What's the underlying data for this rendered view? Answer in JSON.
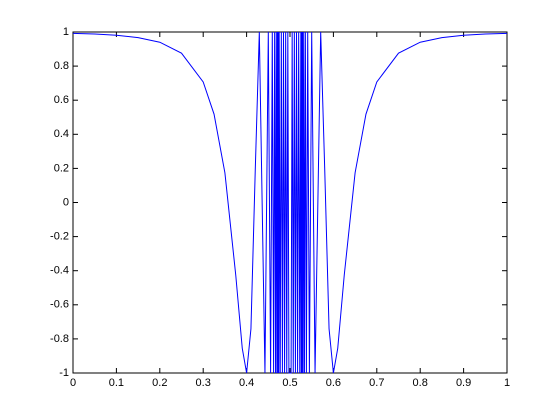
{
  "chart_data": {
    "type": "line",
    "x": [
      0,
      0.05,
      0.1,
      0.15,
      0.2,
      0.25,
      0.3,
      0.325,
      0.35,
      0.375,
      0.39,
      0.4,
      0.41,
      0.42,
      0.4293,
      0.4423,
      0.45,
      0.4553,
      0.4592,
      0.4622,
      0.4646,
      0.4667,
      0.4684,
      0.4699,
      0.4711,
      0.4723,
      0.4733,
      0.4742,
      0.475,
      0.4775,
      0.48,
      0.4825,
      0.485,
      0.4875,
      0.49,
      0.4925,
      0.495,
      0.4975,
      0.5025,
      0.505,
      0.5075,
      0.51,
      0.5125,
      0.515,
      0.5175,
      0.52,
      0.5225,
      0.525,
      0.5258,
      0.5267,
      0.5277,
      0.5289,
      0.5301,
      0.5316,
      0.5333,
      0.5354,
      0.5378,
      0.5408,
      0.5447,
      0.55,
      0.5577,
      0.5707,
      0.58,
      0.59,
      0.6,
      0.61,
      0.625,
      0.65,
      0.675,
      0.7,
      0.75,
      0.8,
      0.85,
      0.9,
      0.95,
      1
    ],
    "series": [
      {
        "color": "#0000ff",
        "values": [
          0.992,
          0.988,
          0.981,
          0.967,
          0.94,
          0.876,
          0.707,
          0.518,
          0.174,
          -0.426,
          -0.855,
          -1,
          -0.741,
          0.195,
          1,
          -1,
          1,
          -1,
          1,
          -1,
          1,
          -1,
          1,
          -1,
          1,
          -1,
          1,
          -1,
          1,
          -1,
          1,
          -1,
          1,
          -1,
          1,
          -1,
          1,
          -1,
          -1,
          1,
          -1,
          1,
          -1,
          1,
          -1,
          1,
          -1,
          1,
          -1,
          1,
          -1,
          1,
          -1,
          1,
          -1,
          1,
          -1,
          1,
          -1,
          1,
          -1,
          1,
          0.195,
          -0.741,
          -1,
          -0.855,
          -0.426,
          0.174,
          0.518,
          0.707,
          0.876,
          0.94,
          0.967,
          0.981,
          0.988,
          0.992
        ]
      }
    ],
    "xlim": [
      0,
      1
    ],
    "ylim": [
      -1,
      1
    ],
    "xticks": [
      0,
      0.1,
      0.2,
      0.3,
      0.4,
      0.5,
      0.6,
      0.7,
      0.8,
      0.9,
      1
    ],
    "yticks": [
      -1,
      -0.8,
      -0.6,
      -0.4,
      -0.2,
      0,
      0.2,
      0.4,
      0.6,
      0.8,
      1
    ]
  }
}
